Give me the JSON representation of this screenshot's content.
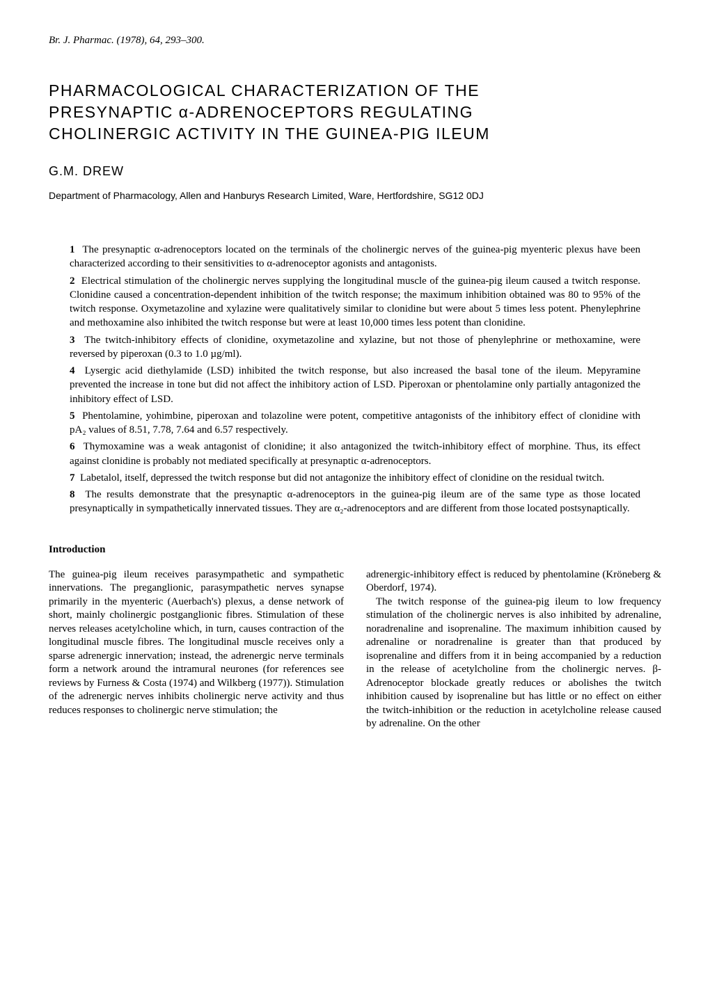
{
  "running_head": "Br. J. Pharmac. (1978), 64, 293–300.",
  "title_line1": "PHARMACOLOGICAL CHARACTERIZATION OF THE",
  "title_line2": "PRESYNAPTIC α-ADRENOCEPTORS REGULATING",
  "title_line3": "CHOLINERGIC ACTIVITY IN THE GUINEA-PIG ILEUM",
  "author": "G.M. DREW",
  "affiliation": "Department of Pharmacology, Allen and Hanburys Research Limited, Ware, Hertfordshire, SG12 0DJ",
  "abstract": [
    {
      "n": "1",
      "text": "The presynaptic α-adrenoceptors located on the terminals of the cholinergic nerves of the guinea-pig myenteric plexus have been characterized according to their sensitivities to α-adrenoceptor agonists and antagonists."
    },
    {
      "n": "2",
      "text": "Electrical stimulation of the cholinergic nerves supplying the longitudinal muscle of the guinea-pig ileum caused a twitch response. Clonidine caused a concentration-dependent inhibition of the twitch response; the maximum inhibition obtained was 80 to 95% of the twitch response. Oxymetazoline and xylazine were qualitatively similar to clonidine but were about 5 times less potent. Phenylephrine and methoxamine also inhibited the twitch response but were at least 10,000 times less potent than clonidine."
    },
    {
      "n": "3",
      "text": "The twitch-inhibitory effects of clonidine, oxymetazoline and xylazine, but not those of phenylephrine or methoxamine, were reversed by piperoxan (0.3 to 1.0 µg/ml)."
    },
    {
      "n": "4",
      "text": "Lysergic acid diethylamide (LSD) inhibited the twitch response, but also increased the basal tone of the ileum. Mepyramine prevented the increase in tone but did not affect the inhibitory action of LSD. Piperoxan or phentolamine only partially antagonized the inhibitory effect of LSD."
    },
    {
      "n": "5",
      "text": "Phentolamine, yohimbine, piperoxan and tolazoline were potent, competitive antagonists of the inhibitory effect of clonidine with pA₂ values of 8.51, 7.78, 7.64 and 6.57 respectively."
    },
    {
      "n": "6",
      "text": "Thymoxamine was a weak antagonist of clonidine; it also antagonized the twitch-inhibitory effect of morphine. Thus, its effect against clonidine is probably not mediated specifically at presynaptic α-adrenoceptors."
    },
    {
      "n": "7",
      "text": "Labetalol, itself, depressed the twitch response but did not antagonize the inhibitory effect of clonidine on the residual twitch."
    },
    {
      "n": "8",
      "text": "The results demonstrate that the presynaptic α-adrenoceptors in the guinea-pig ileum are of the same type as those located presynaptically in sympathetically innervated tissues. They are α₂-adrenoceptors and are different from those located postsynaptically."
    }
  ],
  "section_heading": "Introduction",
  "col_left": "The guinea-pig ileum receives parasympathetic and sympathetic innervations. The preganglionic, parasympathetic nerves synapse primarily in the myenteric (Auerbach's) plexus, a dense network of short, mainly cholinergic postganglionic fibres. Stimulation of these nerves releases acetylcholine which, in turn, causes contraction of the longitudinal muscle fibres. The longitudinal muscle receives only a sparse adrenergic innervation; instead, the adrenergic nerve terminals form a network around the intramural neurones (for references see reviews by Furness & Costa (1974) and Wilkberg (1977)). Stimulation of the adrenergic nerves inhibits cholinergic nerve activity and thus reduces responses to cholinergic nerve stimulation; the",
  "col_right_p1": "adrenergic-inhibitory effect is reduced by phentolamine (Kröneberg & Oberdorf, 1974).",
  "col_right_p2": "The twitch response of the guinea-pig ileum to low frequency stimulation of the cholinergic nerves is also inhibited by adrenaline, noradrenaline and isoprenaline. The maximum inhibition caused by adrenaline or noradrenaline is greater than that produced by isoprenaline and differs from it in being accompanied by a reduction in the release of acetylcholine from the cholinergic nerves. β-Adrenoceptor blockade greatly reduces or abolishes the twitch inhibition caused by isoprenaline but has little or no effect on either the twitch-inhibition or the reduction in acetylcholine release caused by adrenaline. On the other"
}
